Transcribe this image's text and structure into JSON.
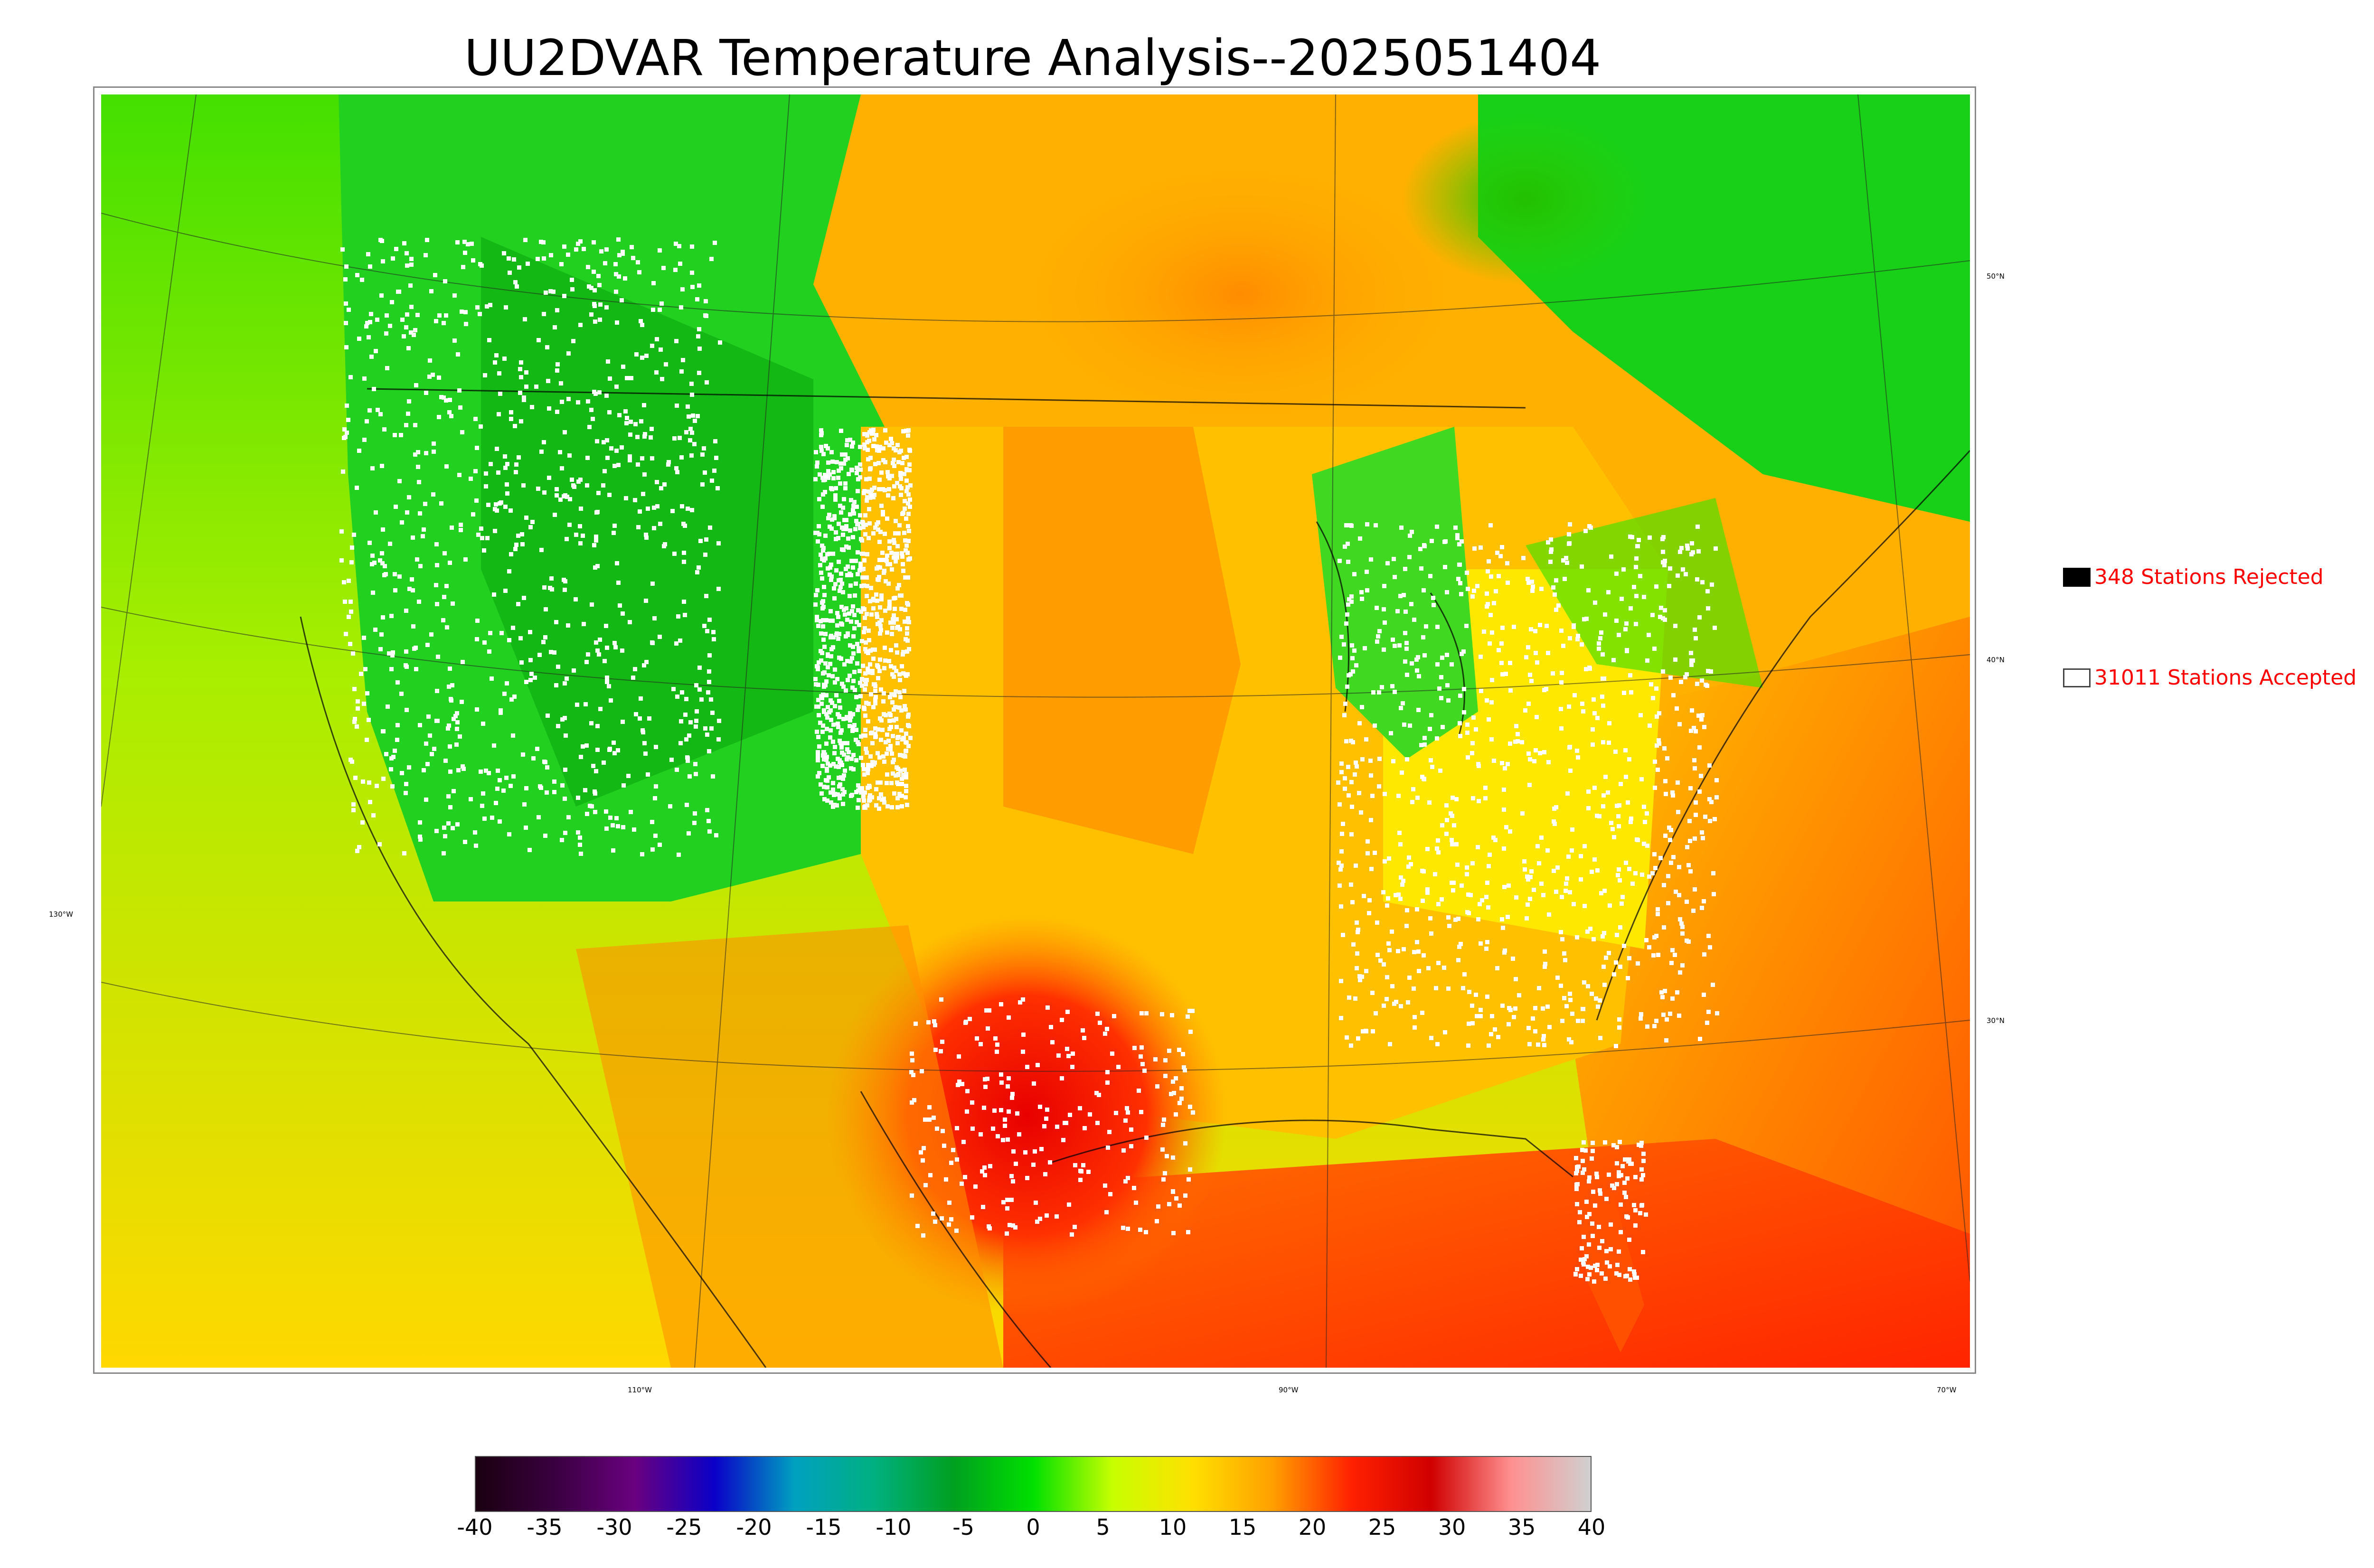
{
  "title": "UU2DVAR Temperature Analysis--2025051404",
  "map": {
    "lat_labels": [
      "50°N",
      "40°N",
      "30°N",
      "130°W"
    ],
    "lon_labels": [
      "110°W",
      "90°W",
      "70°W"
    ]
  },
  "legend": {
    "rejected": {
      "label": "348 Stations Rejected",
      "swatch_color": "#000000"
    },
    "accepted": {
      "label": "31011 Stations Accepted",
      "swatch_color": "#ffffff"
    }
  },
  "colorbar": {
    "ticks": [
      "-40",
      "-35",
      "-30",
      "-25",
      "-20",
      "-15",
      "-10",
      "-5",
      "0",
      "5",
      "10",
      "15",
      "20",
      "25",
      "30",
      "35",
      "40"
    ],
    "stops": [
      "#1a0010",
      "#3a0040",
      "#6a0080",
      "#0a00c8",
      "#00a0c0",
      "#00b080",
      "#00a020",
      "#00e000",
      "#c8ff00",
      "#ffe000",
      "#ffa000",
      "#ff2000",
      "#d00000",
      "#ff9090",
      "#d0d0d0"
    ]
  }
}
